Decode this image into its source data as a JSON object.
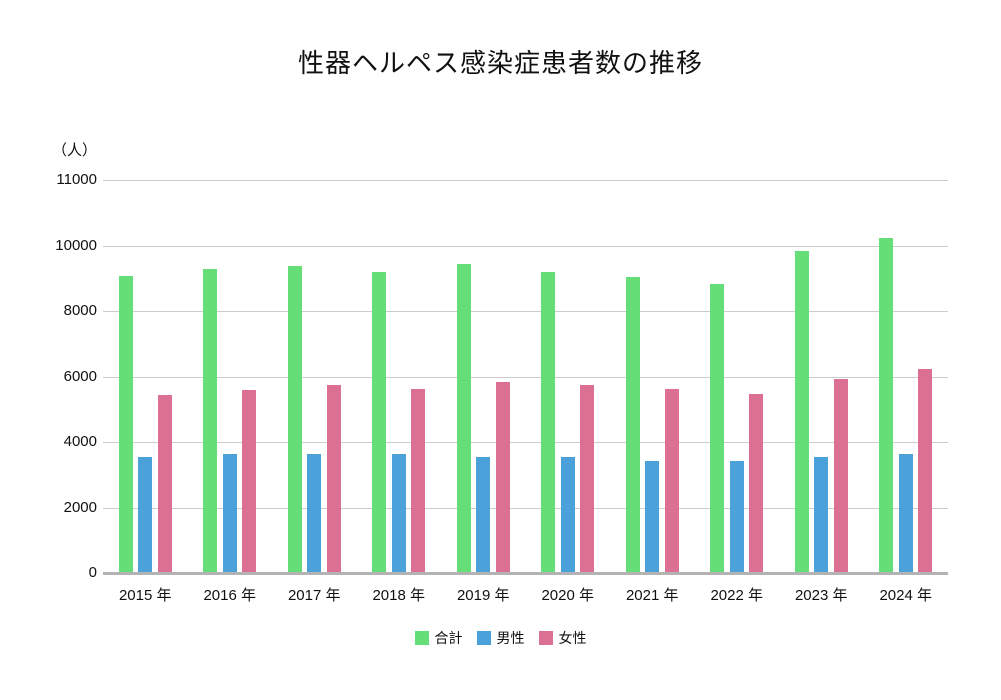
{
  "chart_data": {
    "type": "bar",
    "title": "性器ヘルペス感染症患者数の推移",
    "y_unit": "（人）",
    "xlabel": "",
    "ylabel": "人",
    "categories": [
      "2015 年",
      "2016 年",
      "2017 年",
      "2018 年",
      "2019 年",
      "2020 年",
      "2021 年",
      "2022 年",
      "2023 年",
      "2024 年"
    ],
    "series": [
      {
        "name": "合計",
        "color": "#65de77",
        "values": [
          9050,
          9250,
          9350,
          9150,
          9400,
          9150,
          9000,
          8800,
          9800,
          10100
        ]
      },
      {
        "name": "男性",
        "color": "#4ba2db",
        "values": [
          3500,
          3600,
          3600,
          3600,
          3500,
          3500,
          3400,
          3400,
          3500,
          3600
        ]
      },
      {
        "name": "女性",
        "color": "#db7093",
        "values": [
          5400,
          5550,
          5700,
          5600,
          5800,
          5700,
          5600,
          5450,
          5900,
          6200
        ]
      }
    ],
    "y_ticks": [
      0,
      2000,
      4000,
      6000,
      8000,
      10000,
      11000
    ],
    "y_ticks_evenly_spaced": true,
    "grid": true,
    "legend_position": "bottom",
    "gridline_color": "#cccccc",
    "baseline_color": "#b3b3b3",
    "text_color": "#111111"
  }
}
